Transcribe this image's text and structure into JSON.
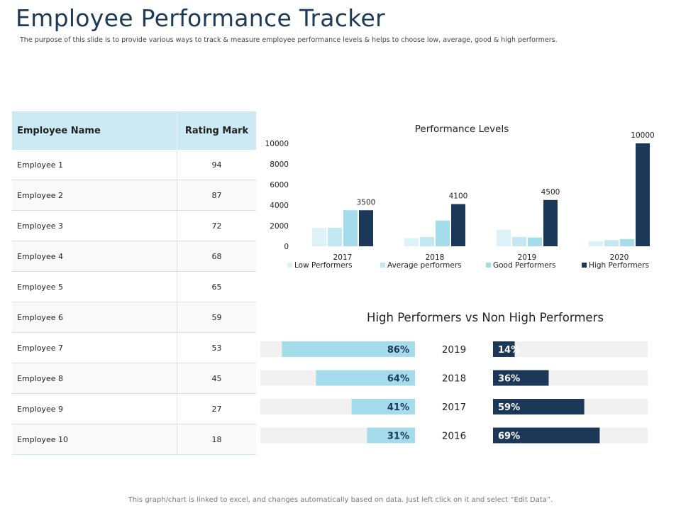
{
  "header": {
    "title": "Employee Performance Tracker",
    "subtitle": "The purpose of this slide is to provide various ways to track & measure employee performance levels & helps to choose low, average, good & high performers."
  },
  "table": {
    "headers": [
      "Employee Name",
      "Rating Mark"
    ],
    "rows": [
      {
        "name": "Employee 1",
        "mark": "94"
      },
      {
        "name": "Employee 2",
        "mark": "87"
      },
      {
        "name": "Employee 3",
        "mark": "72"
      },
      {
        "name": "Employee 4",
        "mark": "68"
      },
      {
        "name": "Employee 5",
        "mark": "65"
      },
      {
        "name": "Employee 6",
        "mark": "59"
      },
      {
        "name": "Employee 7",
        "mark": "53"
      },
      {
        "name": "Employee 8",
        "mark": "45"
      },
      {
        "name": "Employee 9",
        "mark": "27"
      },
      {
        "name": "Employee 10",
        "mark": "18"
      }
    ]
  },
  "chart_data": [
    {
      "type": "bar",
      "title": "Performance Levels",
      "categories": [
        "2017",
        "2018",
        "2019",
        "2020"
      ],
      "series": [
        {
          "name": "Low Performers",
          "values": [
            1800,
            800,
            1600,
            500
          ],
          "color": "#ddf1f8"
        },
        {
          "name": "Average performers",
          "values": [
            1800,
            900,
            900,
            600
          ],
          "color": "#c3e8f2"
        },
        {
          "name": "Good Performers",
          "values": [
            3500,
            2500,
            850,
            700
          ],
          "color": "#a5dcec"
        },
        {
          "name": "High Performers",
          "values": [
            3500,
            4100,
            4500,
            10000
          ],
          "color": "#1b3858"
        }
      ],
      "data_labels": [
        "3500",
        "4100",
        "4500",
        "10000"
      ],
      "yticks": [
        "0",
        "2000",
        "4000",
        "6000",
        "8000",
        "10000"
      ],
      "ylim": [
        0,
        10000
      ],
      "legend": "bottom",
      "grid": false
    },
    {
      "type": "bar",
      "title": "High Performers vs Non High Performers",
      "categories": [
        "2019",
        "2018",
        "2017",
        "2016"
      ],
      "series": [
        {
          "values": [
            86,
            64,
            41,
            31
          ],
          "labels": [
            "86%",
            "64%",
            "41%",
            "31%"
          ],
          "color": "#a5dcec"
        },
        {
          "values": [
            14,
            36,
            59,
            69
          ],
          "labels": [
            "14%",
            "36%",
            "59%",
            "69%"
          ],
          "color": "#1b3858"
        }
      ],
      "xlim": [
        0,
        100
      ],
      "track_color": "#f1f1f1"
    }
  ],
  "footer": "This graph/chart is linked to excel, and changes automatically based on data.  Just left click on it and select “Edit Data”."
}
